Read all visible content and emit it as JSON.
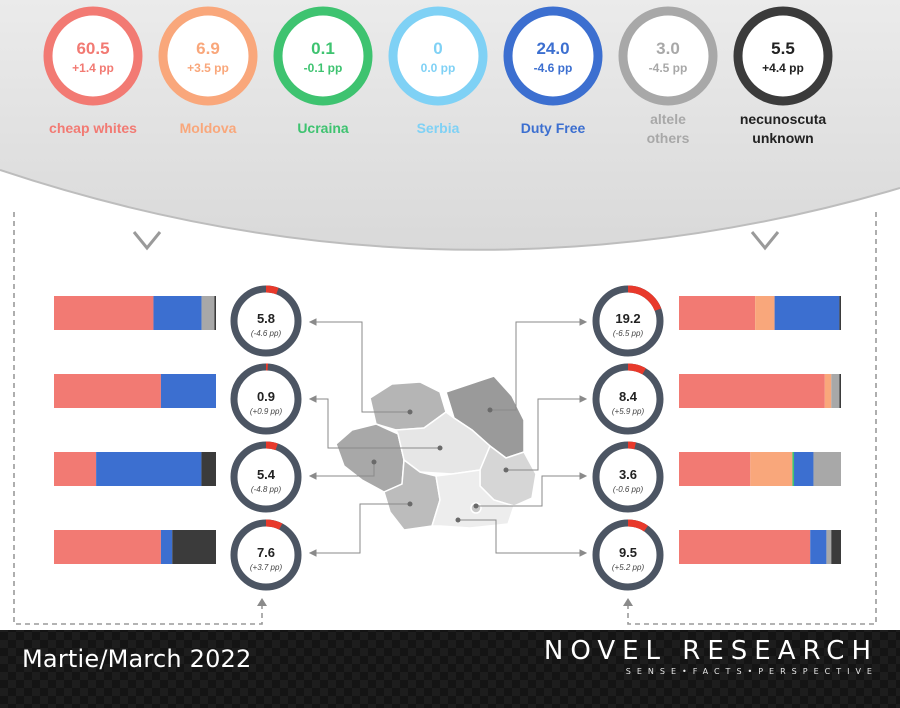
{
  "categories": [
    {
      "value": "60.5",
      "change": "+1.4 pp",
      "label": "cheap whites",
      "label2": "",
      "color": "#f27a73",
      "text_color": "#f27a73"
    },
    {
      "value": "6.9",
      "change": "+3.5 pp",
      "label": "Moldova",
      "label2": "",
      "color": "#f9a77b",
      "text_color": "#f9a77b"
    },
    {
      "value": "0.1",
      "change": "-0.1 pp",
      "label": "Ucraina",
      "label2": "",
      "color": "#3ec370",
      "text_color": "#3ec370"
    },
    {
      "value": "0",
      "change": "0.0 pp",
      "label": "Serbia",
      "label2": "",
      "color": "#7fd1f5",
      "text_color": "#7fd1f5"
    },
    {
      "value": "24.0",
      "change": "-4.6 pp",
      "label": "Duty Free",
      "label2": "",
      "color": "#3c6fd0",
      "text_color": "#3c6fd0"
    },
    {
      "value": "3.0",
      "change": "-4.5 pp",
      "label": "altele",
      "label2": "others",
      "color": "#a8a8a8",
      "text_color": "#a8a8a8"
    },
    {
      "value": "5.5",
      "change": "+4.4 pp",
      "label": "necunoscuta",
      "label2": "unknown",
      "color": "#3b3b3b",
      "text_color": "#222222"
    }
  ],
  "chart_data": {
    "type": "bar",
    "bar_colors": [
      "#f27a73",
      "#f9a77b",
      "#3ec370",
      "#7fd1f5",
      "#3c6fd0",
      "#a8a8a8",
      "#3b3b3b"
    ],
    "regions_left": [
      {
        "value": 5.8,
        "value_label": "5.8",
        "change": "(-4.6 pp)",
        "segments": [
          62,
          0,
          0,
          0,
          30,
          8,
          1
        ]
      },
      {
        "value": 0.9,
        "value_label": "0.9",
        "change": "(+0.9 pp)",
        "segments": [
          66,
          0,
          0,
          0,
          34,
          0,
          0
        ]
      },
      {
        "value": 5.4,
        "value_label": "5.4",
        "change": "(-4.8 pp)",
        "segments": [
          26,
          0,
          0,
          0,
          65,
          0,
          9
        ]
      },
      {
        "value": 7.6,
        "value_label": "7.6",
        "change": "(+3.7 pp)",
        "segments": [
          66,
          0,
          0,
          0,
          7,
          0,
          27
        ]
      }
    ],
    "regions_right": [
      {
        "value": 19.2,
        "value_label": "19.2",
        "change": "(-6.5 pp)",
        "segments": [
          47,
          12,
          0,
          0,
          40,
          0,
          1
        ]
      },
      {
        "value": 8.4,
        "value_label": "8.4",
        "change": "(+5.9 pp)",
        "segments": [
          90,
          4,
          0,
          0,
          0,
          5,
          1
        ]
      },
      {
        "value": 3.6,
        "value_label": "3.6",
        "change": "(-0.6 pp)",
        "segments": [
          44,
          26,
          1,
          0,
          12,
          17,
          0
        ]
      },
      {
        "value": 9.5,
        "value_label": "9.5",
        "change": "(+5.2 pp)",
        "segments": [
          81,
          0,
          0,
          0,
          10,
          3,
          6
        ]
      }
    ]
  },
  "footer": {
    "date": "Martie/March 2022",
    "brand": "NOVEL RESEARCH",
    "tagline": "SENSE•FACTS•PERSPECTIVE"
  }
}
